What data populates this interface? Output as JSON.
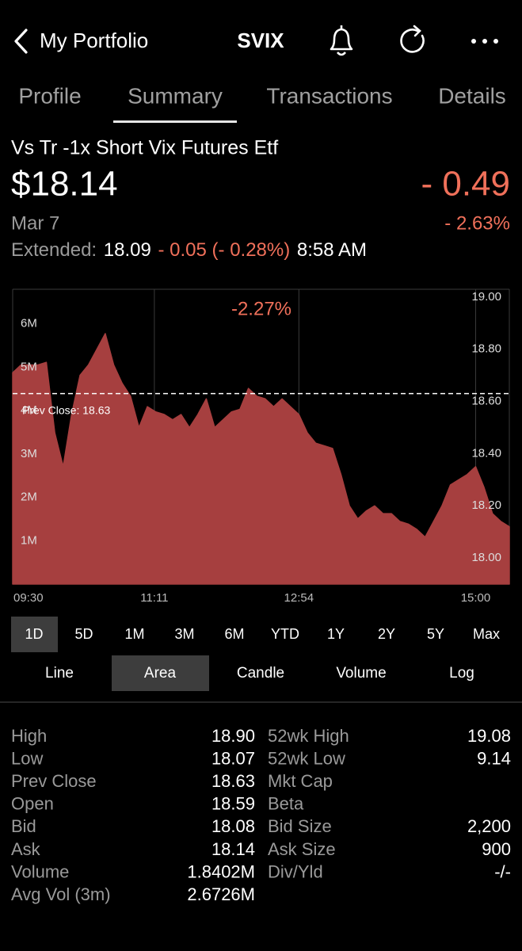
{
  "header": {
    "back": "My Portfolio",
    "symbol": "SVIX"
  },
  "tabs": {
    "items": [
      "Profile",
      "Summary",
      "Transactions",
      "Details"
    ],
    "selected": 1
  },
  "quote": {
    "name": "Vs Tr -1x Short Vix Futures Etf",
    "price": "$18.14",
    "change": "- 0.49",
    "change_pct": "- 2.63%",
    "date": "Mar 7",
    "extended": {
      "label": "Extended:",
      "price": "18.09",
      "change": "- 0.05 (- 0.28%)",
      "time": "8:58 AM"
    }
  },
  "chart_data": {
    "type": "area",
    "annotation": "-2.27%",
    "grid": true,
    "prev_close": {
      "value": 18.63,
      "label": "Prev Close: 18.63"
    },
    "x": [
      "09:30",
      "09:36",
      "09:42",
      "09:48",
      "09:54",
      "10:00",
      "10:06",
      "10:12",
      "10:18",
      "10:24",
      "10:30",
      "10:36",
      "10:42",
      "10:48",
      "10:54",
      "11:00",
      "11:06",
      "11:12",
      "11:18",
      "11:24",
      "11:30",
      "11:36",
      "11:42",
      "11:48",
      "11:54",
      "12:00",
      "12:06",
      "12:12",
      "12:18",
      "12:24",
      "12:30",
      "12:36",
      "12:42",
      "12:48",
      "12:54",
      "13:00",
      "13:06",
      "13:12",
      "13:18",
      "13:24",
      "13:30",
      "13:36",
      "13:42",
      "13:48",
      "13:54",
      "14:00",
      "14:06",
      "14:12",
      "14:18",
      "14:24",
      "14:30",
      "14:36",
      "14:42",
      "14:48",
      "14:54",
      "15:00",
      "15:06",
      "15:12",
      "15:18",
      "15:24"
    ],
    "xlim": [
      "09:30",
      "15:24"
    ],
    "xticks": [
      "09:30",
      "11:11",
      "12:54",
      "15:00"
    ],
    "ylim": [
      0,
      6800000
    ],
    "yticks": [
      {
        "value": 1000000,
        "label": "1M"
      },
      {
        "value": 2000000,
        "label": "2M"
      },
      {
        "value": 3000000,
        "label": "3M"
      },
      {
        "value": 4000000,
        "label": "4M"
      },
      {
        "value": 5000000,
        "label": "5M"
      },
      {
        "value": 6000000,
        "label": "6M"
      }
    ],
    "y2lim": [
      17.9,
      19.03
    ],
    "y2ticks": [
      {
        "value": 19,
        "label": "19.00"
      },
      {
        "value": 18.8,
        "label": "18.80"
      },
      {
        "value": 18.6,
        "label": "18.60"
      },
      {
        "value": 18.4,
        "label": "18.40"
      },
      {
        "value": 18.2,
        "label": "18.20"
      },
      {
        "value": 18,
        "label": "18.00"
      }
    ],
    "series": [
      {
        "color": "#a63f3f",
        "axis": "y2",
        "values": [
          18.71,
          18.74,
          18.74,
          18.74,
          18.75,
          18.48,
          18.35,
          18.55,
          18.7,
          18.74,
          18.8,
          18.86,
          18.74,
          18.67,
          18.62,
          18.5,
          18.58,
          18.56,
          18.55,
          18.53,
          18.55,
          18.5,
          18.55,
          18.61,
          18.5,
          18.53,
          18.56,
          18.57,
          18.65,
          18.62,
          18.61,
          18.58,
          18.61,
          18.58,
          18.55,
          18.48,
          18.44,
          18.43,
          18.42,
          18.32,
          18.2,
          18.15,
          18.18,
          18.2,
          18.17,
          18.17,
          18.14,
          18.13,
          18.11,
          18.08,
          18.14,
          18.2,
          18.28,
          18.3,
          18.32,
          18.35,
          18.27,
          18.17,
          18.14,
          18.12
        ]
      }
    ]
  },
  "ranges": {
    "items": [
      "1D",
      "5D",
      "1M",
      "3M",
      "6M",
      "YTD",
      "1Y",
      "2Y",
      "5Y",
      "Max"
    ],
    "selected": 0
  },
  "styles": {
    "items": [
      "Line",
      "Area",
      "Candle",
      "Volume",
      "Log"
    ],
    "selected": 1
  },
  "stats": {
    "left": [
      {
        "label": "High",
        "value": "18.90"
      },
      {
        "label": "Low",
        "value": "18.07"
      },
      {
        "label": "Prev Close",
        "value": "18.63"
      },
      {
        "label": "Open",
        "value": "18.59"
      },
      {
        "label": "Bid",
        "value": "18.08"
      },
      {
        "label": "Ask",
        "value": "18.14"
      },
      {
        "label": "Volume",
        "value": "1.8402M"
      },
      {
        "label": "Avg Vol (3m)",
        "value": "2.6726M"
      }
    ],
    "right": [
      {
        "label": "52wk High",
        "value": "19.08"
      },
      {
        "label": "52wk Low",
        "value": "9.14"
      },
      {
        "label": "Mkt Cap",
        "value": ""
      },
      {
        "label": "Beta",
        "value": ""
      },
      {
        "label": "Bid Size",
        "value": "2,200"
      },
      {
        "label": "Ask Size",
        "value": "900"
      },
      {
        "label": "Div/Yld",
        "value": "-/-"
      }
    ]
  }
}
